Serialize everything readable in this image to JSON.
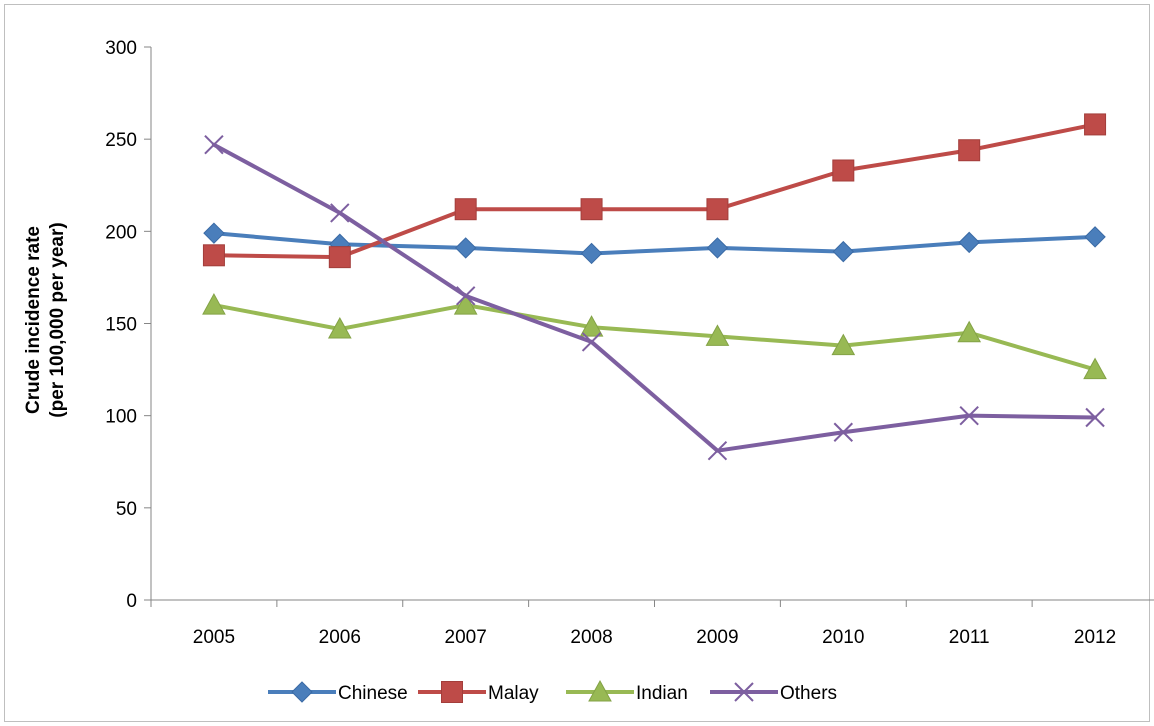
{
  "chart_data": {
    "type": "line",
    "title": "",
    "xlabel": "",
    "ylabel": [
      "Crude incidence rate",
      "(per 100,000 per year)"
    ],
    "categories": [
      "2005",
      "2006",
      "2007",
      "2008",
      "2009",
      "2010",
      "2011",
      "2012"
    ],
    "ylim": [
      0,
      300
    ],
    "yticks": [
      0,
      50,
      100,
      150,
      200,
      250,
      300
    ],
    "grid": false,
    "legend_position": "bottom",
    "series": [
      {
        "name": "Chinese",
        "color": "#4a7ebb",
        "marker": "diamond",
        "values": [
          199,
          193,
          191,
          188,
          191,
          189,
          194,
          197
        ]
      },
      {
        "name": "Malay",
        "color": "#be4b48",
        "marker": "square",
        "values": [
          187,
          186,
          212,
          212,
          212,
          233,
          244,
          258
        ]
      },
      {
        "name": "Indian",
        "color": "#98b954",
        "marker": "triangle",
        "values": [
          160,
          147,
          160,
          148,
          143,
          138,
          145,
          125
        ]
      },
      {
        "name": "Others",
        "color": "#7d5fa0",
        "marker": "x",
        "values": [
          247,
          210,
          165,
          140,
          81,
          91,
          100,
          99
        ]
      }
    ]
  }
}
